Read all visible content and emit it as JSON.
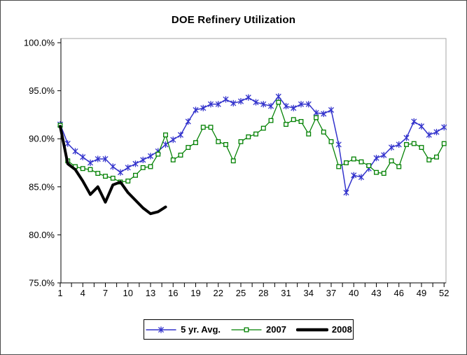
{
  "chart_data": {
    "type": "line",
    "title": "DOE Refinery Utilization",
    "y_axis": {
      "min": 75,
      "max": 100,
      "tick_values": [
        100,
        95,
        90,
        85,
        80,
        75
      ],
      "tick_labels": [
        "100.0%",
        "95.0%",
        "90.0%",
        "85.0%",
        "80.0%",
        "75.0%"
      ]
    },
    "x_axis": {
      "weeks_total": 52,
      "label_weeks": [
        1,
        4,
        7,
        10,
        13,
        16,
        19,
        22,
        25,
        28,
        31,
        34,
        37,
        40,
        43,
        46,
        49,
        52
      ],
      "tick_labels": [
        "1",
        "4",
        "7",
        "10",
        "13",
        "16",
        "19",
        "22",
        "25",
        "28",
        "31",
        "34",
        "37",
        "40",
        "43",
        "46",
        "49",
        "52"
      ]
    },
    "legend_position": "bottom",
    "grid": false,
    "series": [
      {
        "name": "5 yr. Avg.",
        "color": "#3333CC",
        "marker": "star",
        "line_width": 1.5,
        "values": [
          91.5,
          89.5,
          88.7,
          88.1,
          87.5,
          87.9,
          87.9,
          87.1,
          86.5,
          87.0,
          87.4,
          87.8,
          88.2,
          88.7,
          89.4,
          89.9,
          90.4,
          91.8,
          93.0,
          93.2,
          93.6,
          93.6,
          94.1,
          93.7,
          93.9,
          94.3,
          93.8,
          93.6,
          93.4,
          94.4,
          93.4,
          93.2,
          93.6,
          93.6,
          92.7,
          92.6,
          93.0,
          89.4,
          84.4,
          86.2,
          86.0,
          86.9,
          88.0,
          88.3,
          89.1,
          89.4,
          90.1,
          91.8,
          91.3,
          90.4,
          90.7,
          91.2
        ]
      },
      {
        "name": "2007",
        "color": "#008000",
        "marker": "square",
        "line_width": 1.25,
        "values": [
          91.4,
          87.7,
          87.1,
          86.9,
          86.8,
          86.4,
          86.1,
          85.9,
          85.5,
          85.6,
          86.2,
          87.0,
          87.1,
          88.4,
          90.4,
          87.8,
          88.3,
          89.1,
          89.6,
          91.2,
          91.2,
          89.7,
          89.4,
          87.7,
          89.7,
          90.2,
          90.5,
          91.1,
          91.9,
          93.8,
          91.5,
          92.0,
          91.8,
          90.5,
          92.2,
          90.7,
          89.7,
          87.1,
          87.5,
          87.9,
          87.6,
          87.2,
          86.5,
          86.4,
          87.7,
          87.1,
          89.4,
          89.5,
          89.1,
          87.8,
          88.1,
          89.5
        ]
      },
      {
        "name": "2008",
        "color": "#000000",
        "marker": "none",
        "line_width": 4,
        "values": [
          91.3,
          87.4,
          86.8,
          85.6,
          84.2,
          85.0,
          83.4,
          85.2,
          85.5,
          84.4,
          83.6,
          82.8,
          82.2,
          82.4,
          82.9
        ]
      }
    ]
  }
}
